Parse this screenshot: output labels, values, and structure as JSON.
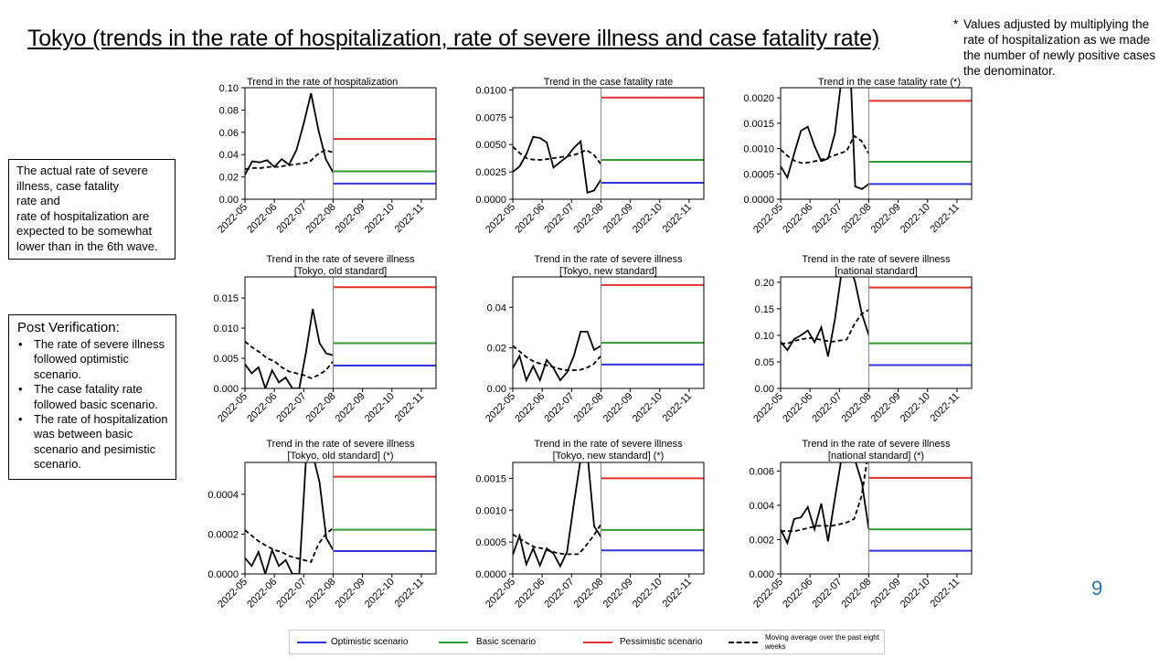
{
  "title": "Tokyo (trends in the rate of hospitalization, rate of severe illness and case fatality rate)",
  "footnote": {
    "star": "*",
    "text": "Values adjusted by multiplying the rate of hospitalization as we made the number of newly positive cases the denominator."
  },
  "box1": {
    "lines": [
      "The actual rate of severe",
      "illness, case fatality",
      "rate and",
      "rate of hospitalization are",
      "expected to be somewhat",
      "lower than in the 6th wave."
    ]
  },
  "box2": {
    "heading": "Post Verification:",
    "bullets": [
      "The rate of severe illness followed optimistic scenario.",
      "The case fatality rate followed basic scenario.",
      "The rate of hospitalization was between basic scenario and pesimistic scenario."
    ]
  },
  "page_number": "9",
  "legend": {
    "optimistic": "Optimistic scenario",
    "basic": "Basic scenario",
    "pessimistic": "Pessimistic scenario",
    "moving_avg": "Moving average over the past eight weeks"
  },
  "colors": {
    "optimistic": "#3333dd",
    "basic": "#339933",
    "pessimistic": "#e03030",
    "actual": "#000000",
    "divider": "#888888",
    "page_number": "#2e75b6"
  },
  "chart_data": [
    {
      "type": "line",
      "title": [
        "Trend in the rate of hospitalization"
      ],
      "title_align": "left",
      "x_ticks": [
        "2022-05",
        "2022-06",
        "2022-07",
        "2022-08",
        "2022-09",
        "2022-10",
        "2022-11"
      ],
      "x_range": [
        0,
        6.5
      ],
      "ylim": [
        0,
        0.1
      ],
      "y_ticks": [
        "0.00",
        "0.02",
        "0.04",
        "0.06",
        "0.08",
        "0.10"
      ],
      "divider_x": 3,
      "actual": [
        0.022,
        0.034,
        0.033,
        0.035,
        0.029,
        0.036,
        0.031,
        0.044,
        0.068,
        0.095,
        0.062,
        0.036,
        0.024
      ],
      "moving_avg": [
        0.027,
        0.028,
        0.028,
        0.029,
        0.029,
        0.03,
        0.031,
        0.032,
        0.033,
        0.04,
        0.044,
        0.042
      ],
      "scenarios": {
        "optimistic": 0.014,
        "basic": 0.025,
        "pessimistic": 0.054
      }
    },
    {
      "type": "line",
      "title": [
        "Trend in the case fatality rate"
      ],
      "title_align": "center",
      "x_ticks": [
        "2022-05",
        "2022-06",
        "2022-07",
        "2022-08",
        "2022-09",
        "2022-10",
        "2022-11"
      ],
      "x_range": [
        0,
        6.5
      ],
      "ylim": [
        0,
        0.0102
      ],
      "y_ticks": [
        "0.0000",
        "0.0025",
        "0.0050",
        "0.0075",
        "0.0100"
      ],
      "divider_x": 3,
      "actual": [
        0.0025,
        0.003,
        0.0041,
        0.0057,
        0.0056,
        0.0052,
        0.0029,
        0.0034,
        0.0039,
        0.0047,
        0.0053,
        0.0006,
        0.0008,
        0.0018
      ],
      "moving_avg": [
        0.0048,
        0.0042,
        0.0037,
        0.0036,
        0.0036,
        0.0037,
        0.0038,
        0.0039,
        0.004,
        0.0042,
        0.0045,
        0.0041,
        0.0032
      ],
      "scenarios": {
        "optimistic": 0.0015,
        "basic": 0.0036,
        "pessimistic": 0.0093
      }
    },
    {
      "type": "line",
      "title": [
        "Trend in the case fatality rate (*)"
      ],
      "title_align": "right",
      "x_ticks": [
        "2022-05",
        "2022-06",
        "2022-07",
        "2022-08",
        "2022-09",
        "2022-10",
        "2022-11"
      ],
      "x_range": [
        0,
        6.5
      ],
      "ylim": [
        0,
        0.0022
      ],
      "y_ticks": [
        "0.0000",
        "0.0005",
        "0.0010",
        "0.0015",
        "0.0020"
      ],
      "divider_x": 3,
      "actual": [
        0.00065,
        0.00043,
        0.0009,
        0.00135,
        0.00143,
        0.00105,
        0.00075,
        0.0008,
        0.0013,
        0.0024,
        0.0035,
        0.00025,
        0.0002,
        0.0003
      ],
      "moving_avg": [
        0.00098,
        0.00085,
        0.00075,
        0.00071,
        0.00073,
        0.00076,
        0.0008,
        0.00085,
        0.0009,
        0.00095,
        0.00125,
        0.00115,
        0.0009
      ],
      "scenarios": {
        "optimistic": 0.0003,
        "basic": 0.00074,
        "pessimistic": 0.00194
      }
    },
    {
      "type": "line",
      "title": [
        "Trend in the rate of severe illness",
        "[Tokyo, old standard]"
      ],
      "title_align": "center",
      "x_ticks": [
        "2022-05",
        "2022-06",
        "2022-07",
        "2022-08",
        "2022-09",
        "2022-10",
        "2022-11"
      ],
      "x_range": [
        0,
        6.5
      ],
      "ylim": [
        0,
        0.0185
      ],
      "y_ticks": [
        "0.000",
        "0.005",
        "0.010",
        "0.015"
      ],
      "divider_x": 3,
      "actual": [
        0.004,
        0.0025,
        0.0035,
        0.0,
        0.003,
        0.001,
        0.0018,
        0.0,
        0.0,
        0.006,
        0.0132,
        0.0075,
        0.0058,
        0.0055
      ],
      "moving_avg": [
        0.0078,
        0.0068,
        0.006,
        0.005,
        0.0045,
        0.0035,
        0.0028,
        0.0025,
        0.0022,
        0.0017,
        0.0022,
        0.003,
        0.0045
      ],
      "scenarios": {
        "optimistic": 0.0038,
        "basic": 0.0075,
        "pessimistic": 0.0168
      }
    },
    {
      "type": "line",
      "title": [
        "Trend in the rate of severe illness",
        "[Tokyo,  new standard]"
      ],
      "title_align": "center",
      "x_ticks": [
        "2022-05",
        "2022-06",
        "2022-07",
        "2022-08",
        "2022-09",
        "2022-10",
        "2022-11"
      ],
      "x_range": [
        0,
        6.5
      ],
      "ylim": [
        0,
        0.055
      ],
      "y_ticks": [
        "0.00",
        "0.02",
        "0.04"
      ],
      "divider_x": 3,
      "actual": [
        0.01,
        0.016,
        0.004,
        0.011,
        0.004,
        0.014,
        0.01,
        0.004,
        0.008,
        0.016,
        0.028,
        0.028,
        0.019,
        0.021
      ],
      "moving_avg": [
        0.021,
        0.018,
        0.015,
        0.013,
        0.012,
        0.011,
        0.01,
        0.009,
        0.009,
        0.009,
        0.01,
        0.012,
        0.016
      ],
      "scenarios": {
        "optimistic": 0.0118,
        "basic": 0.0225,
        "pessimistic": 0.051
      }
    },
    {
      "type": "line",
      "title": [
        "Trend in the rate of severe illness",
        "[national standard]"
      ],
      "title_align": "center",
      "x_ticks": [
        "2022-05",
        "2022-06",
        "2022-07",
        "2022-08",
        "2022-09",
        "2022-10",
        "2022-11"
      ],
      "x_range": [
        0,
        6.5
      ],
      "ylim": [
        0,
        0.21
      ],
      "y_ticks": [
        "0.00",
        "0.05",
        "0.10",
        "0.15",
        "0.20"
      ],
      "divider_x": 3,
      "actual": [
        0.088,
        0.072,
        0.093,
        0.1,
        0.109,
        0.087,
        0.115,
        0.06,
        0.13,
        0.22,
        0.24,
        0.2,
        0.14,
        0.1
      ],
      "moving_avg": [
        0.084,
        0.085,
        0.09,
        0.093,
        0.095,
        0.093,
        0.09,
        0.088,
        0.09,
        0.092,
        0.12,
        0.14,
        0.148
      ],
      "scenarios": {
        "optimistic": 0.044,
        "basic": 0.085,
        "pessimistic": 0.19
      }
    },
    {
      "type": "line",
      "title": [
        "Trend in the rate of severe illness",
        "[Tokyo,  old standard] (*)"
      ],
      "title_align": "center",
      "x_ticks": [
        "2022-05",
        "2022-06",
        "2022-07",
        "2022-08",
        "2022-09",
        "2022-10",
        "2022-11"
      ],
      "x_range": [
        0,
        6.5
      ],
      "ylim": [
        0,
        0.00056
      ],
      "y_ticks": [
        "0.0000",
        "0.0002",
        "0.0004"
      ],
      "divider_x": 3,
      "actual": [
        8e-05,
        4e-05,
        0.00011,
        0.0,
        0.00012,
        4e-05,
        7e-05,
        0.0,
        0.0,
        0.00058,
        0.0006,
        0.00046,
        0.00018,
        0.00012
      ],
      "moving_avg": [
        0.00022,
        0.00019,
        0.00016,
        0.00014,
        0.00012,
        0.00011,
        9e-05,
        8e-05,
        7e-05,
        6e-05,
        0.00015,
        0.0002,
        0.00023
      ],
      "scenarios": {
        "optimistic": 0.000115,
        "basic": 0.000222,
        "pessimistic": 0.000488
      }
    },
    {
      "type": "line",
      "title": [
        "Trend in the rate of severe illness",
        "[Tokyo,  new standard] (*)"
      ],
      "title_align": "center",
      "x_ticks": [
        "2022-05",
        "2022-06",
        "2022-07",
        "2022-08",
        "2022-09",
        "2022-10",
        "2022-11"
      ],
      "x_range": [
        0,
        6.5
      ],
      "ylim": [
        0,
        0.00175
      ],
      "y_ticks": [
        "0.0000",
        "0.0005",
        "0.0010",
        "0.0015"
      ],
      "divider_x": 3,
      "actual": [
        0.0003,
        0.0006,
        0.00015,
        0.0004,
        0.00013,
        0.0004,
        0.00032,
        0.00012,
        0.00035,
        0.0011,
        0.0018,
        0.0019,
        0.00075,
        0.00058
      ],
      "moving_avg": [
        0.00062,
        0.00055,
        0.00048,
        0.00042,
        0.0004,
        0.00036,
        0.00033,
        0.00031,
        0.00031,
        0.00031,
        0.00045,
        0.0006,
        0.00078
      ],
      "scenarios": {
        "optimistic": 0.00037,
        "basic": 0.00069,
        "pessimistic": 0.0015
      }
    },
    {
      "type": "line",
      "title": [
        "Trend in the rate of severe illness",
        "[national standard] (*)"
      ],
      "title_align": "center",
      "x_ticks": [
        "2022-05",
        "2022-06",
        "2022-07",
        "2022-08",
        "2022-09",
        "2022-10",
        "2022-11"
      ],
      "x_range": [
        0,
        6.5
      ],
      "ylim": [
        0,
        0.0065
      ],
      "y_ticks": [
        "0.000",
        "0.002",
        "0.004",
        "0.006"
      ],
      "divider_x": 3,
      "actual": [
        0.0026,
        0.0018,
        0.0032,
        0.0033,
        0.0039,
        0.0026,
        0.0041,
        0.0019,
        0.0044,
        0.0068,
        0.0074,
        0.0066,
        0.0053,
        0.0026
      ],
      "moving_avg": [
        0.0025,
        0.0025,
        0.0025,
        0.0026,
        0.0027,
        0.0028,
        0.0028,
        0.0028,
        0.0029,
        0.003,
        0.0032,
        0.0045,
        0.0072
      ],
      "scenarios": {
        "optimistic": 0.00135,
        "basic": 0.0026,
        "pessimistic": 0.0056
      }
    }
  ]
}
